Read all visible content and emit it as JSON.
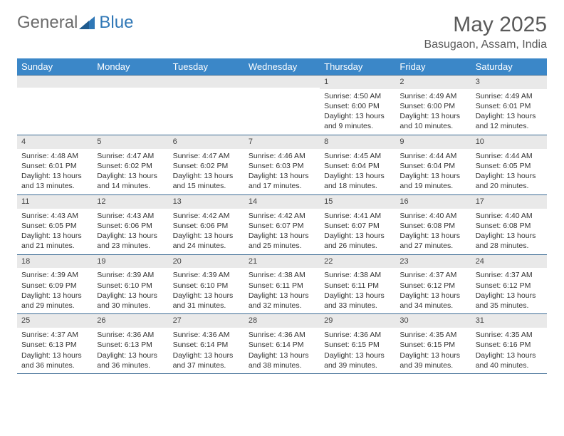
{
  "logo": {
    "part1": "General",
    "part2": "Blue"
  },
  "title": "May 2025",
  "location": "Basugaon, Assam, India",
  "colors": {
    "header_bg": "#3b87c8",
    "header_fg": "#ffffff",
    "daynum_bg": "#e9e9e9",
    "border": "#3b6a93",
    "logo_gray": "#6b6b6b",
    "logo_blue": "#2f77b6"
  },
  "weekdays": [
    "Sunday",
    "Monday",
    "Tuesday",
    "Wednesday",
    "Thursday",
    "Friday",
    "Saturday"
  ],
  "weeks": [
    [
      null,
      null,
      null,
      null,
      {
        "d": "1",
        "sr": "Sunrise: 4:50 AM",
        "ss": "Sunset: 6:00 PM",
        "dl1": "Daylight: 13 hours",
        "dl2": "and 9 minutes."
      },
      {
        "d": "2",
        "sr": "Sunrise: 4:49 AM",
        "ss": "Sunset: 6:00 PM",
        "dl1": "Daylight: 13 hours",
        "dl2": "and 10 minutes."
      },
      {
        "d": "3",
        "sr": "Sunrise: 4:49 AM",
        "ss": "Sunset: 6:01 PM",
        "dl1": "Daylight: 13 hours",
        "dl2": "and 12 minutes."
      }
    ],
    [
      {
        "d": "4",
        "sr": "Sunrise: 4:48 AM",
        "ss": "Sunset: 6:01 PM",
        "dl1": "Daylight: 13 hours",
        "dl2": "and 13 minutes."
      },
      {
        "d": "5",
        "sr": "Sunrise: 4:47 AM",
        "ss": "Sunset: 6:02 PM",
        "dl1": "Daylight: 13 hours",
        "dl2": "and 14 minutes."
      },
      {
        "d": "6",
        "sr": "Sunrise: 4:47 AM",
        "ss": "Sunset: 6:02 PM",
        "dl1": "Daylight: 13 hours",
        "dl2": "and 15 minutes."
      },
      {
        "d": "7",
        "sr": "Sunrise: 4:46 AM",
        "ss": "Sunset: 6:03 PM",
        "dl1": "Daylight: 13 hours",
        "dl2": "and 17 minutes."
      },
      {
        "d": "8",
        "sr": "Sunrise: 4:45 AM",
        "ss": "Sunset: 6:04 PM",
        "dl1": "Daylight: 13 hours",
        "dl2": "and 18 minutes."
      },
      {
        "d": "9",
        "sr": "Sunrise: 4:44 AM",
        "ss": "Sunset: 6:04 PM",
        "dl1": "Daylight: 13 hours",
        "dl2": "and 19 minutes."
      },
      {
        "d": "10",
        "sr": "Sunrise: 4:44 AM",
        "ss": "Sunset: 6:05 PM",
        "dl1": "Daylight: 13 hours",
        "dl2": "and 20 minutes."
      }
    ],
    [
      {
        "d": "11",
        "sr": "Sunrise: 4:43 AM",
        "ss": "Sunset: 6:05 PM",
        "dl1": "Daylight: 13 hours",
        "dl2": "and 21 minutes."
      },
      {
        "d": "12",
        "sr": "Sunrise: 4:43 AM",
        "ss": "Sunset: 6:06 PM",
        "dl1": "Daylight: 13 hours",
        "dl2": "and 23 minutes."
      },
      {
        "d": "13",
        "sr": "Sunrise: 4:42 AM",
        "ss": "Sunset: 6:06 PM",
        "dl1": "Daylight: 13 hours",
        "dl2": "and 24 minutes."
      },
      {
        "d": "14",
        "sr": "Sunrise: 4:42 AM",
        "ss": "Sunset: 6:07 PM",
        "dl1": "Daylight: 13 hours",
        "dl2": "and 25 minutes."
      },
      {
        "d": "15",
        "sr": "Sunrise: 4:41 AM",
        "ss": "Sunset: 6:07 PM",
        "dl1": "Daylight: 13 hours",
        "dl2": "and 26 minutes."
      },
      {
        "d": "16",
        "sr": "Sunrise: 4:40 AM",
        "ss": "Sunset: 6:08 PM",
        "dl1": "Daylight: 13 hours",
        "dl2": "and 27 minutes."
      },
      {
        "d": "17",
        "sr": "Sunrise: 4:40 AM",
        "ss": "Sunset: 6:08 PM",
        "dl1": "Daylight: 13 hours",
        "dl2": "and 28 minutes."
      }
    ],
    [
      {
        "d": "18",
        "sr": "Sunrise: 4:39 AM",
        "ss": "Sunset: 6:09 PM",
        "dl1": "Daylight: 13 hours",
        "dl2": "and 29 minutes."
      },
      {
        "d": "19",
        "sr": "Sunrise: 4:39 AM",
        "ss": "Sunset: 6:10 PM",
        "dl1": "Daylight: 13 hours",
        "dl2": "and 30 minutes."
      },
      {
        "d": "20",
        "sr": "Sunrise: 4:39 AM",
        "ss": "Sunset: 6:10 PM",
        "dl1": "Daylight: 13 hours",
        "dl2": "and 31 minutes."
      },
      {
        "d": "21",
        "sr": "Sunrise: 4:38 AM",
        "ss": "Sunset: 6:11 PM",
        "dl1": "Daylight: 13 hours",
        "dl2": "and 32 minutes."
      },
      {
        "d": "22",
        "sr": "Sunrise: 4:38 AM",
        "ss": "Sunset: 6:11 PM",
        "dl1": "Daylight: 13 hours",
        "dl2": "and 33 minutes."
      },
      {
        "d": "23",
        "sr": "Sunrise: 4:37 AM",
        "ss": "Sunset: 6:12 PM",
        "dl1": "Daylight: 13 hours",
        "dl2": "and 34 minutes."
      },
      {
        "d": "24",
        "sr": "Sunrise: 4:37 AM",
        "ss": "Sunset: 6:12 PM",
        "dl1": "Daylight: 13 hours",
        "dl2": "and 35 minutes."
      }
    ],
    [
      {
        "d": "25",
        "sr": "Sunrise: 4:37 AM",
        "ss": "Sunset: 6:13 PM",
        "dl1": "Daylight: 13 hours",
        "dl2": "and 36 minutes."
      },
      {
        "d": "26",
        "sr": "Sunrise: 4:36 AM",
        "ss": "Sunset: 6:13 PM",
        "dl1": "Daylight: 13 hours",
        "dl2": "and 36 minutes."
      },
      {
        "d": "27",
        "sr": "Sunrise: 4:36 AM",
        "ss": "Sunset: 6:14 PM",
        "dl1": "Daylight: 13 hours",
        "dl2": "and 37 minutes."
      },
      {
        "d": "28",
        "sr": "Sunrise: 4:36 AM",
        "ss": "Sunset: 6:14 PM",
        "dl1": "Daylight: 13 hours",
        "dl2": "and 38 minutes."
      },
      {
        "d": "29",
        "sr": "Sunrise: 4:36 AM",
        "ss": "Sunset: 6:15 PM",
        "dl1": "Daylight: 13 hours",
        "dl2": "and 39 minutes."
      },
      {
        "d": "30",
        "sr": "Sunrise: 4:35 AM",
        "ss": "Sunset: 6:15 PM",
        "dl1": "Daylight: 13 hours",
        "dl2": "and 39 minutes."
      },
      {
        "d": "31",
        "sr": "Sunrise: 4:35 AM",
        "ss": "Sunset: 6:16 PM",
        "dl1": "Daylight: 13 hours",
        "dl2": "and 40 minutes."
      }
    ]
  ]
}
